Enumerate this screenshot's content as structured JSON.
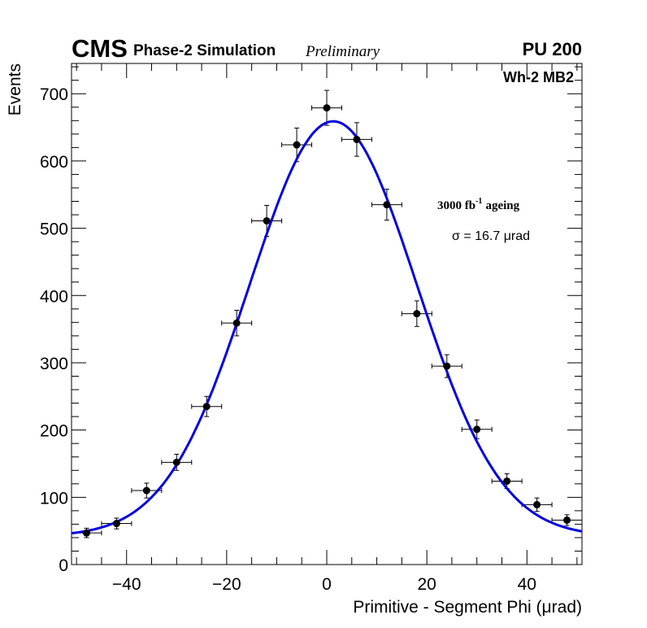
{
  "chart_data": {
    "type": "scatter",
    "title": "",
    "header": {
      "experiment": "CMS",
      "subtitle": "Phase-2 Simulation",
      "status": "Preliminary",
      "pileup": "PU 200",
      "station": "Wh-2 MB2"
    },
    "annotations": {
      "ageing_value": "3000 fb",
      "ageing_exponent": "-1",
      "ageing_suffix": "ageing",
      "sigma": "σ = 16.7 μrad"
    },
    "xlabel": "Primitive - Segment Phi (μrad)",
    "ylabel": "Events",
    "xlim": [
      -51,
      51
    ],
    "ylim": [
      0,
      745
    ],
    "x_ticks": [
      -40,
      -20,
      0,
      20,
      40
    ],
    "x_tick_labels": [
      "−40",
      "−20",
      "0",
      "20",
      "40"
    ],
    "y_ticks": [
      0,
      100,
      200,
      300,
      400,
      500,
      600,
      700
    ],
    "y_tick_labels": [
      "0",
      "100",
      "200",
      "300",
      "400",
      "500",
      "600",
      "700"
    ],
    "grid": false,
    "series": [
      {
        "name": "Simulation",
        "style": "points-with-errors",
        "x": [
          -48,
          -42,
          -36,
          -30,
          -24,
          -18,
          -12,
          -6,
          0,
          6,
          12,
          18,
          24,
          30,
          36,
          42,
          48
        ],
        "y": [
          47,
          61,
          110,
          152,
          235,
          359,
          511,
          624,
          679,
          632,
          535,
          373,
          295,
          201,
          124,
          89,
          66
        ],
        "x_err": 3,
        "y_err": [
          7,
          8,
          11,
          12,
          15,
          19,
          23,
          25,
          26,
          25,
          23,
          19,
          17,
          14,
          11,
          10,
          8
        ]
      },
      {
        "name": "Gaussian fit",
        "style": "line",
        "color": "#0000dd",
        "amplitude": 617,
        "mean": 1.3,
        "sigma": 16.7,
        "baseline": 42
      }
    ]
  }
}
